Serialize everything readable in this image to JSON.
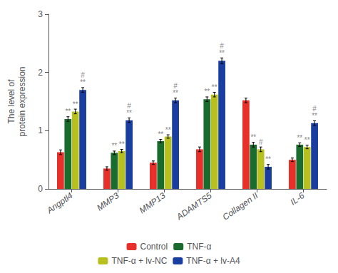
{
  "chart_data": {
    "type": "bar",
    "categories": [
      "Angptl4",
      "MMP3",
      "MMP13",
      "ADAMTS5",
      "Collagen II",
      "IL-6"
    ],
    "ylabel": "The level of\nprotein expression",
    "ylim": [
      0,
      3
    ],
    "yticks": [
      0,
      1,
      2,
      3
    ],
    "grid": false,
    "series": [
      {
        "name": "Control",
        "color": "#e8302a",
        "values": [
          0.63,
          0.35,
          0.45,
          0.68,
          1.52,
          0.5
        ],
        "errors": [
          0.04,
          0.03,
          0.03,
          0.04,
          0.04,
          0.03
        ],
        "annotations": [
          null,
          null,
          null,
          null,
          null,
          null
        ]
      },
      {
        "name": "TNF-α",
        "color": "#1a6b2e",
        "values": [
          1.2,
          0.62,
          0.82,
          1.54,
          0.76,
          0.76
        ],
        "errors": [
          0.04,
          0.03,
          0.03,
          0.04,
          0.04,
          0.03
        ],
        "annotations": [
          [
            {
              "text": "**",
              "color": "#888888"
            }
          ],
          [
            {
              "text": "**",
              "color": "#888888"
            }
          ],
          [
            {
              "text": "**",
              "color": "#888888"
            }
          ],
          [
            {
              "text": "**",
              "color": "#888888"
            }
          ],
          [
            {
              "text": "**",
              "color": "#888888"
            }
          ],
          [
            {
              "text": "**",
              "color": "#888888"
            }
          ]
        ]
      },
      {
        "name": "TNF-α + lv-NC",
        "color": "#b8c020",
        "values": [
          1.33,
          0.65,
          0.9,
          1.62,
          0.68,
          0.72
        ],
        "errors": [
          0.04,
          0.03,
          0.03,
          0.04,
          0.04,
          0.03
        ],
        "annotations": [
          [
            {
              "text": "**",
              "color": "#888888"
            }
          ],
          [
            {
              "text": "**",
              "color": "#888888"
            }
          ],
          [
            {
              "text": "**",
              "color": "#888888"
            }
          ],
          [
            {
              "text": "**",
              "color": "#888888"
            }
          ],
          [
            {
              "text": "#",
              "color": "#888888"
            }
          ],
          [
            {
              "text": "**",
              "color": "#888888"
            }
          ]
        ]
      },
      {
        "name": "TNF-α + lv-A4",
        "color": "#1a3e9f",
        "values": [
          1.7,
          1.18,
          1.52,
          2.2,
          0.38,
          1.13
        ],
        "errors": [
          0.04,
          0.04,
          0.04,
          0.05,
          0.04,
          0.04
        ],
        "annotations": [
          [
            {
              "text": "**",
              "color": "#888888"
            },
            {
              "text": "#",
              "color": "#888888"
            }
          ],
          [
            {
              "text": "**",
              "color": "#888888"
            },
            {
              "text": "#",
              "color": "#888888"
            }
          ],
          [
            {
              "text": "**",
              "color": "#888888"
            },
            {
              "text": "#",
              "color": "#888888"
            }
          ],
          [
            {
              "text": "**",
              "color": "#888888"
            },
            {
              "text": "#",
              "color": "#888888"
            }
          ],
          [
            {
              "text": "**",
              "color": "#888888"
            }
          ],
          [
            {
              "text": "**",
              "color": "#888888"
            },
            {
              "text": "#",
              "color": "#888888"
            }
          ]
        ]
      }
    ]
  }
}
